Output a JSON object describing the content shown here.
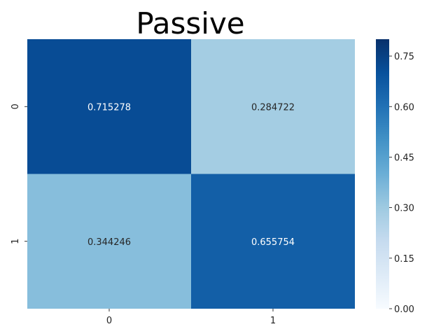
{
  "chart_data": {
    "type": "heatmap",
    "title": "Passive",
    "xlabel": "",
    "ylabel": "",
    "x_categories": [
      "0",
      "1"
    ],
    "y_categories": [
      "0",
      "1"
    ],
    "values": [
      [
        0.715278,
        0.284722
      ],
      [
        0.344246,
        0.655754
      ]
    ],
    "value_labels": [
      [
        "0.715278",
        "0.284722"
      ],
      [
        "0.344246",
        "0.655754"
      ]
    ],
    "colorbar": {
      "min": 0.0,
      "max": 0.8,
      "colormap": "Blues",
      "ticks": [
        0.0,
        0.15,
        0.3,
        0.45,
        0.6,
        0.75
      ],
      "tick_labels": [
        "0.00",
        "0.15",
        "0.30",
        "0.45",
        "0.60",
        "0.75"
      ]
    },
    "colors": {
      "dark_text": "#262626",
      "light_text": "#ffffff"
    },
    "grid": false
  }
}
